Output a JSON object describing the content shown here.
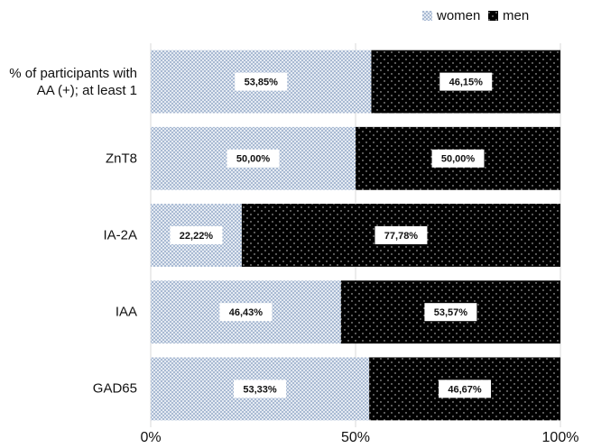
{
  "chart_data": {
    "type": "stacked_bar_horizontal",
    "categories": [
      "% of participants with AA (+); at least 1",
      "ZnT8",
      "IA-2A",
      "IAA",
      "GAD65"
    ],
    "series": [
      {
        "name": "women",
        "color": "#a9bad3",
        "values": [
          53.85,
          50.0,
          22.22,
          46.43,
          53.33
        ],
        "value_labels": [
          "53,85%",
          "50,00%",
          "22,22%",
          "46,43%",
          "53,33%"
        ]
      },
      {
        "name": "men",
        "color": "#000000",
        "values": [
          46.15,
          50.0,
          77.78,
          53.57,
          46.67
        ],
        "value_labels": [
          "46,15%",
          "50,00%",
          "77,78%",
          "53,57%",
          "46,67%"
        ]
      }
    ],
    "xlim": [
      0,
      100
    ],
    "xticks": [
      {
        "value": 0,
        "label": "0%"
      },
      {
        "value": 50,
        "label": "50%"
      },
      {
        "value": 100,
        "label": "100%"
      }
    ],
    "grid": true,
    "legend": "top-right"
  }
}
